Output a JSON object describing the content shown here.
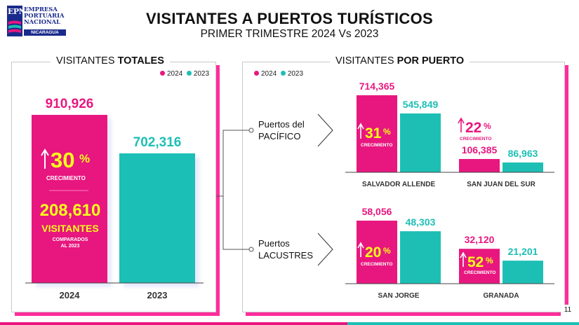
{
  "logo": {
    "abbr": "EPN",
    "name_lines": [
      "EMPRESA",
      "PORTUARIA",
      "NACIONAL"
    ],
    "country": "NICARAGUA"
  },
  "header": {
    "title": "VISITANTES A PUERTOS TURÍSTICOS",
    "subtitle": "PRIMER TRIMESTRE 2024 Vs 2023"
  },
  "colors": {
    "y2024": "#e8177f",
    "y2023": "#1dbfb5",
    "yellow": "#f6ff1a",
    "arrow": "#f6ff1a"
  },
  "legend": {
    "y2024": "2024",
    "y2023": "2023"
  },
  "left_panel": {
    "title_plain": "VISITANTES ",
    "title_bold": "TOTALES",
    "growth_pct": "30",
    "pct_sign": "%",
    "growth_label": "CRECIMIENTO",
    "diff_value": "208,610",
    "diff_label": "VISITANTES",
    "diff_note_1": "COMPARADOS",
    "diff_note_2": "AL 2023"
  },
  "right_panel": {
    "title_plain": "VISITANTES ",
    "title_bold": "POR PUERTO",
    "group_pacific_line1": "Puertos del",
    "group_pacific_line2": "PACÍFICO",
    "group_lake_line1": "Puertos",
    "group_lake_line2": "LACUSTRES",
    "growth": [
      {
        "port": "SALVADOR ALLENDE",
        "pct": "31",
        "label": "CRECIMIENTO"
      },
      {
        "port": "SAN JUAN DEL SUR",
        "pct": "22",
        "label": "CRECIMIENTO"
      },
      {
        "port": "SAN JORGE",
        "pct": "20",
        "label": "CRECIMIENTO"
      },
      {
        "port": "GRANADA",
        "pct": "52",
        "label": "CRECIMIENTO"
      }
    ]
  },
  "page_number": "11",
  "chart_data": [
    {
      "type": "bar",
      "title": "VISITANTES TOTALES",
      "categories": [
        "2024",
        "2023"
      ],
      "values": [
        910926,
        702316
      ],
      "value_labels": [
        "910,926",
        "702,316"
      ],
      "ylim": [
        0,
        1000000
      ]
    },
    {
      "type": "bar",
      "title": "Puertos del PACÍFICO",
      "categories": [
        "SALVADOR ALLENDE",
        "SAN JUAN DEL SUR"
      ],
      "series": [
        {
          "name": "2024",
          "values": [
            714365,
            106385
          ],
          "labels": [
            "714,365",
            "106,385"
          ]
        },
        {
          "name": "2023",
          "values": [
            545849,
            86963
          ],
          "labels": [
            "545,849",
            "86,963"
          ]
        }
      ]
    },
    {
      "type": "bar",
      "title": "Puertos LACUSTRES",
      "categories": [
        "SAN JORGE",
        "GRANADA"
      ],
      "series": [
        {
          "name": "2024",
          "values": [
            58056,
            32120
          ],
          "labels": [
            "58,056",
            "32,120"
          ]
        },
        {
          "name": "2023",
          "values": [
            48303,
            21201
          ],
          "labels": [
            "48,303",
            "21,201"
          ]
        }
      ]
    }
  ]
}
